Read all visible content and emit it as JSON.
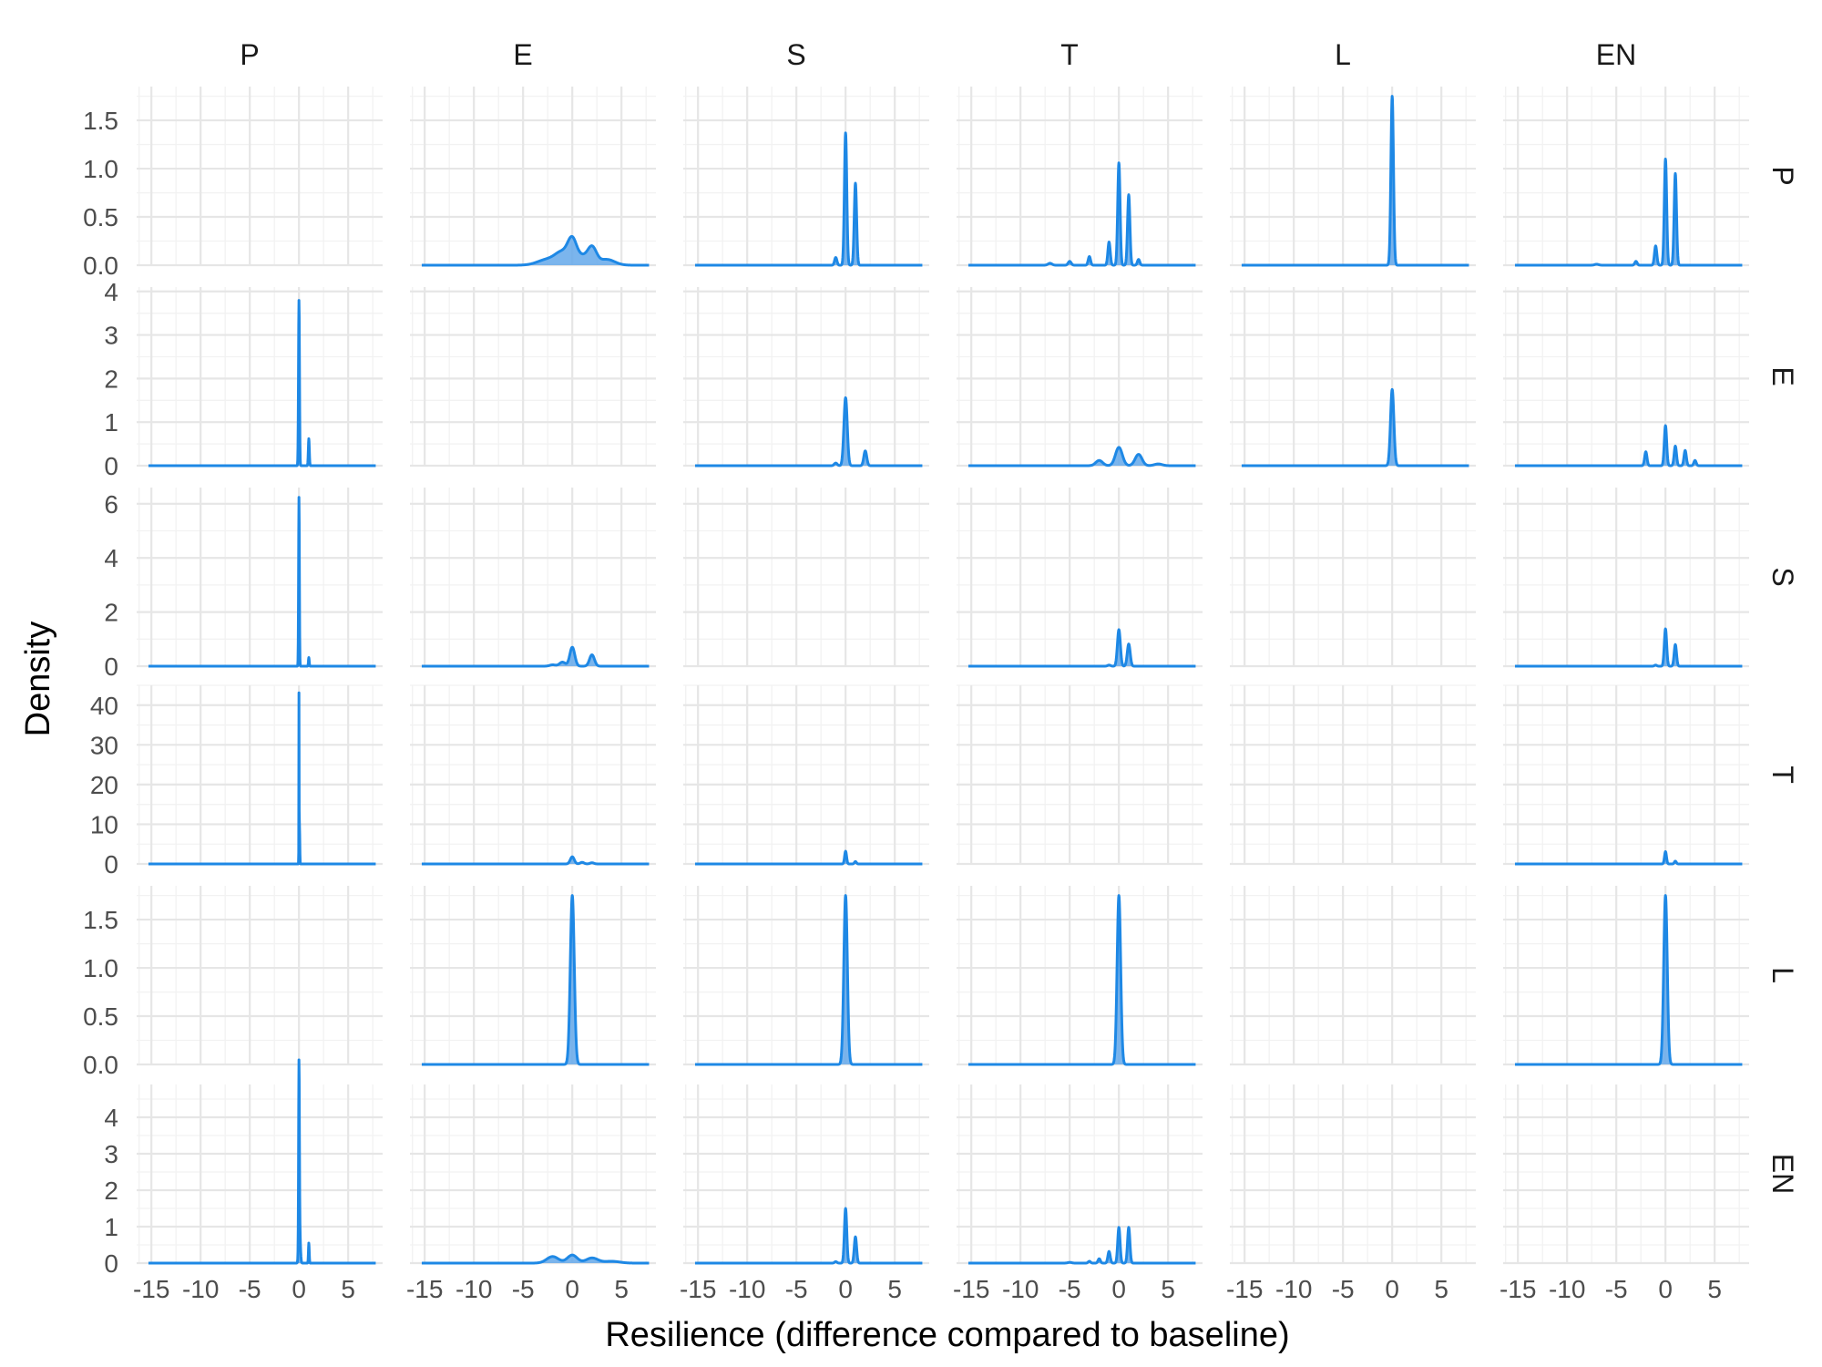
{
  "chart_data": {
    "type": "area",
    "xlabel": "Resilience (difference compared to baseline)",
    "ylabel": "Density",
    "facet_cols": [
      "P",
      "E",
      "S",
      "T",
      "L",
      "EN"
    ],
    "facet_rows": [
      "P",
      "E",
      "S",
      "T",
      "L",
      "EN"
    ],
    "x_ticks": [
      -15,
      -10,
      -5,
      0,
      5
    ],
    "x_tick_labels": [
      "-15",
      "-10",
      "-5",
      "0",
      "5"
    ],
    "xlim": [
      -16.5,
      8.5
    ],
    "rows": [
      {
        "name": "P",
        "ylim": [
          0,
          1.85
        ],
        "y_ticks": [
          0,
          0.5,
          1.0,
          1.5
        ],
        "y_tick_labels": [
          "0.0",
          "0.5",
          "1.0",
          "1.5"
        ]
      },
      {
        "name": "E",
        "ylim": [
          0,
          4.1
        ],
        "y_ticks": [
          0,
          1,
          2,
          3,
          4
        ],
        "y_tick_labels": [
          "0",
          "1",
          "2",
          "3",
          "4"
        ]
      },
      {
        "name": "S",
        "ylim": [
          0,
          6.6
        ],
        "y_ticks": [
          0,
          2,
          4,
          6
        ],
        "y_tick_labels": [
          "0",
          "2",
          "4",
          "6"
        ]
      },
      {
        "name": "T",
        "ylim": [
          0,
          45
        ],
        "y_ticks": [
          0,
          10,
          20,
          30,
          40
        ],
        "y_tick_labels": [
          "0",
          "10",
          "20",
          "30",
          "40"
        ]
      },
      {
        "name": "L",
        "ylim": [
          0,
          1.85
        ],
        "y_ticks": [
          0,
          0.5,
          1.0,
          1.5
        ],
        "y_tick_labels": [
          "0.0",
          "0.5",
          "1.0",
          "1.5"
        ]
      },
      {
        "name": "EN",
        "ylim": [
          0,
          4.9
        ],
        "y_ticks": [
          0,
          1,
          2,
          3,
          4
        ],
        "y_tick_labels": [
          "0",
          "1",
          "2",
          "3",
          "4"
        ]
      }
    ],
    "grid": true,
    "line_color": "#1E88E5",
    "fill_color": "#64A8EA",
    "panels": [
      {
        "row": "P",
        "col": "P",
        "peaks": []
      },
      {
        "row": "P",
        "col": "E",
        "peaks": [
          [
            -2.5,
            0.06,
            1.0
          ],
          [
            -1,
            0.12,
            0.7
          ],
          [
            0,
            0.24,
            0.45
          ],
          [
            1,
            0.08,
            0.5
          ],
          [
            2,
            0.18,
            0.45
          ],
          [
            3.5,
            0.06,
            0.8
          ]
        ]
      },
      {
        "row": "P",
        "col": "S",
        "peaks": [
          [
            0,
            1.37,
            0.12
          ],
          [
            1,
            0.85,
            0.12
          ],
          [
            -1,
            0.08,
            0.12
          ]
        ]
      },
      {
        "row": "P",
        "col": "T",
        "peaks": [
          [
            0,
            1.06,
            0.12
          ],
          [
            1,
            0.73,
            0.12
          ],
          [
            -1,
            0.24,
            0.12
          ],
          [
            -3,
            0.09,
            0.12
          ],
          [
            -5,
            0.04,
            0.15
          ],
          [
            -7,
            0.02,
            0.2
          ],
          [
            2,
            0.06,
            0.12
          ]
        ]
      },
      {
        "row": "P",
        "col": "L",
        "peaks": [
          [
            0,
            1.75,
            0.13
          ]
        ]
      },
      {
        "row": "P",
        "col": "EN",
        "peaks": [
          [
            0,
            1.1,
            0.12
          ],
          [
            1,
            0.95,
            0.12
          ],
          [
            -1,
            0.2,
            0.12
          ],
          [
            -3,
            0.04,
            0.12
          ],
          [
            -7,
            0.01,
            0.2
          ]
        ]
      },
      {
        "row": "E",
        "col": "P",
        "peaks": [
          [
            0,
            3.8,
            0.05
          ],
          [
            1,
            0.62,
            0.05
          ]
        ]
      },
      {
        "row": "E",
        "col": "E",
        "peaks": []
      },
      {
        "row": "E",
        "col": "S",
        "peaks": [
          [
            0,
            1.56,
            0.17
          ],
          [
            2,
            0.34,
            0.15
          ],
          [
            -1,
            0.06,
            0.15
          ]
        ]
      },
      {
        "row": "E",
        "col": "T",
        "peaks": [
          [
            0,
            0.42,
            0.35
          ],
          [
            2,
            0.26,
            0.35
          ],
          [
            -2,
            0.12,
            0.35
          ],
          [
            4,
            0.04,
            0.4
          ]
        ]
      },
      {
        "row": "E",
        "col": "L",
        "peaks": [
          [
            0,
            1.75,
            0.17
          ]
        ]
      },
      {
        "row": "E",
        "col": "EN",
        "peaks": [
          [
            0,
            0.92,
            0.12
          ],
          [
            1,
            0.45,
            0.12
          ],
          [
            2,
            0.35,
            0.12
          ],
          [
            -2,
            0.32,
            0.12
          ],
          [
            3,
            0.12,
            0.12
          ]
        ]
      },
      {
        "row": "S",
        "col": "P",
        "peaks": [
          [
            0,
            6.25,
            0.04
          ],
          [
            1,
            0.32,
            0.04
          ]
        ]
      },
      {
        "row": "S",
        "col": "E",
        "peaks": [
          [
            0,
            0.7,
            0.25
          ],
          [
            2,
            0.42,
            0.25
          ],
          [
            -1,
            0.15,
            0.3
          ],
          [
            -2,
            0.05,
            0.3
          ]
        ]
      },
      {
        "row": "S",
        "col": "S",
        "peaks": []
      },
      {
        "row": "S",
        "col": "T",
        "peaks": [
          [
            0,
            1.35,
            0.15
          ],
          [
            1,
            0.82,
            0.15
          ],
          [
            -1,
            0.04,
            0.15
          ]
        ]
      },
      {
        "row": "S",
        "col": "L",
        "peaks": []
      },
      {
        "row": "S",
        "col": "EN",
        "peaks": [
          [
            0,
            1.38,
            0.12
          ],
          [
            1,
            0.8,
            0.12
          ],
          [
            -1,
            0.04,
            0.12
          ]
        ]
      },
      {
        "row": "T",
        "col": "P",
        "peaks": [
          [
            0,
            42,
            0.012
          ],
          [
            0.05,
            10,
            0.03
          ]
        ]
      },
      {
        "row": "T",
        "col": "E",
        "peaks": [
          [
            0,
            1.8,
            0.2
          ],
          [
            1,
            0.4,
            0.2
          ],
          [
            2,
            0.3,
            0.2
          ]
        ]
      },
      {
        "row": "T",
        "col": "S",
        "peaks": [
          [
            0,
            3.2,
            0.1
          ],
          [
            1,
            0.6,
            0.1
          ]
        ]
      },
      {
        "row": "T",
        "col": "T",
        "peaks": []
      },
      {
        "row": "T",
        "col": "L",
        "peaks": []
      },
      {
        "row": "T",
        "col": "EN",
        "peaks": [
          [
            0,
            3.1,
            0.1
          ],
          [
            1,
            0.7,
            0.1
          ]
        ]
      },
      {
        "row": "L",
        "col": "P",
        "peaks": []
      },
      {
        "row": "L",
        "col": "E",
        "peaks": [
          [
            0,
            1.75,
            0.2
          ]
        ]
      },
      {
        "row": "L",
        "col": "S",
        "peaks": [
          [
            0,
            1.75,
            0.18
          ]
        ]
      },
      {
        "row": "L",
        "col": "T",
        "peaks": [
          [
            0,
            1.75,
            0.18
          ]
        ]
      },
      {
        "row": "L",
        "col": "L",
        "peaks": []
      },
      {
        "row": "L",
        "col": "EN",
        "peaks": [
          [
            0,
            1.75,
            0.18
          ]
        ]
      },
      {
        "row": "EN",
        "col": "P",
        "peaks": [
          [
            0,
            4.7,
            0.04
          ],
          [
            1,
            0.55,
            0.04
          ],
          [
            0.05,
            1.1,
            0.08
          ]
        ]
      },
      {
        "row": "EN",
        "col": "E",
        "peaks": [
          [
            -2,
            0.18,
            0.6
          ],
          [
            0,
            0.22,
            0.5
          ],
          [
            2,
            0.14,
            0.6
          ],
          [
            4,
            0.05,
            0.8
          ]
        ]
      },
      {
        "row": "EN",
        "col": "S",
        "peaks": [
          [
            0,
            1.5,
            0.12
          ],
          [
            1,
            0.72,
            0.12
          ],
          [
            -1,
            0.04,
            0.12
          ]
        ]
      },
      {
        "row": "EN",
        "col": "T",
        "peaks": [
          [
            0,
            0.98,
            0.12
          ],
          [
            1,
            0.98,
            0.12
          ],
          [
            -1,
            0.32,
            0.12
          ],
          [
            -2,
            0.12,
            0.12
          ],
          [
            -3,
            0.05,
            0.12
          ],
          [
            -5,
            0.02,
            0.2
          ]
        ]
      },
      {
        "row": "EN",
        "col": "L",
        "peaks": []
      },
      {
        "row": "EN",
        "col": "EN",
        "peaks": []
      }
    ]
  }
}
